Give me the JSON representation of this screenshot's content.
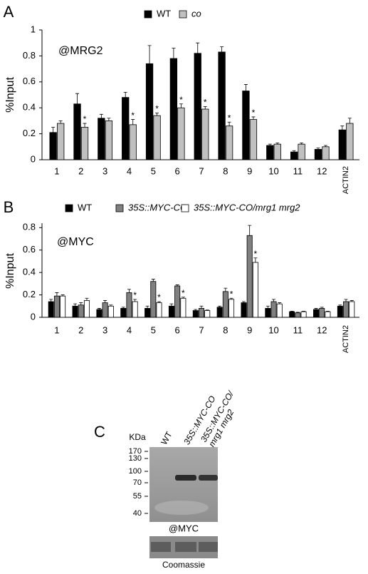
{
  "chart_data": [
    {
      "type": "bar",
      "panel": "A",
      "title": "@MRG2",
      "ylabel": "%Input",
      "categories": [
        "1",
        "2",
        "3",
        "4",
        "5",
        "6",
        "7",
        "8",
        "9",
        "10",
        "11",
        "12",
        "ACTIN2"
      ],
      "series": [
        {
          "name": "WT",
          "color": "#000000",
          "values": [
            0.21,
            0.43,
            0.32,
            0.48,
            0.74,
            0.78,
            0.82,
            0.83,
            0.53,
            0.11,
            0.06,
            0.08,
            0.23
          ],
          "errors": [
            0.04,
            0.08,
            0.03,
            0.04,
            0.14,
            0.08,
            0.08,
            0.04,
            0.05,
            0.01,
            0.01,
            0.01,
            0.03
          ]
        },
        {
          "name": "co",
          "color": "#c0c0c0",
          "values": [
            0.28,
            0.25,
            0.3,
            0.27,
            0.34,
            0.4,
            0.39,
            0.26,
            0.31,
            0.12,
            0.12,
            0.1,
            0.28
          ],
          "errors": [
            0.02,
            0.03,
            0.02,
            0.04,
            0.02,
            0.03,
            0.02,
            0.03,
            0.02,
            0.01,
            0.01,
            0.01,
            0.04
          ],
          "significance": [
            null,
            "*",
            null,
            "*",
            "*",
            "*",
            "*",
            "*",
            "*",
            null,
            null,
            null,
            null
          ]
        }
      ],
      "ylim": [
        0,
        1
      ],
      "yticks": [
        0,
        0.2,
        0.4,
        0.6,
        0.8,
        1
      ]
    },
    {
      "type": "bar",
      "panel": "B",
      "title": "@MYC",
      "ylabel": "%Input",
      "categories": [
        "1",
        "2",
        "3",
        "4",
        "5",
        "6",
        "7",
        "8",
        "9",
        "10",
        "11",
        "12",
        "ACTIN2"
      ],
      "series": [
        {
          "name": "WT",
          "color": "#000000",
          "values": [
            0.14,
            0.1,
            0.07,
            0.08,
            0.08,
            0.1,
            0.06,
            0.09,
            0.13,
            0.08,
            0.05,
            0.07,
            0.1
          ],
          "errors": [
            0.02,
            0.02,
            0.01,
            0.01,
            0.02,
            0.02,
            0.01,
            0.01,
            0.01,
            0.02,
            0.005,
            0.01,
            0.01
          ]
        },
        {
          "name": "35S::MYC-CO",
          "color": "#808080",
          "values": [
            0.19,
            0.11,
            0.13,
            0.22,
            0.32,
            0.28,
            0.08,
            0.23,
            0.73,
            0.14,
            0.04,
            0.08,
            0.14
          ],
          "errors": [
            0.03,
            0.02,
            0.02,
            0.03,
            0.02,
            0.01,
            0.02,
            0.03,
            0.09,
            0.02,
            0.005,
            0.01,
            0.02
          ]
        },
        {
          "name": "35S::MYC-CO/mrg1 mrg2",
          "color": "#ffffff",
          "values": [
            0.19,
            0.15,
            0.1,
            0.14,
            0.13,
            0.17,
            0.06,
            0.16,
            0.49,
            0.12,
            0.05,
            0.05,
            0.14
          ],
          "errors": [
            0.01,
            0.02,
            0.01,
            0.02,
            0.01,
            0.01,
            0.005,
            0.01,
            0.04,
            0.01,
            0.005,
            0.005,
            0.01
          ],
          "significance": [
            null,
            null,
            null,
            "*",
            "*",
            "*",
            null,
            "*",
            "*",
            null,
            null,
            null,
            null
          ]
        }
      ],
      "ylim": [
        0,
        0.84
      ],
      "yticks": [
        0,
        0.2,
        0.4,
        0.6,
        0.8
      ]
    }
  ],
  "blot": {
    "panel": "C",
    "unit": "KDa",
    "lanes": [
      "WT",
      "35S::MYC-CO",
      "35S::MYC-CO/ mrg1 mrg2"
    ],
    "markers": [
      170,
      130,
      100,
      70,
      55,
      40
    ],
    "antibody": "@MYC",
    "loading": "Coomassie"
  }
}
